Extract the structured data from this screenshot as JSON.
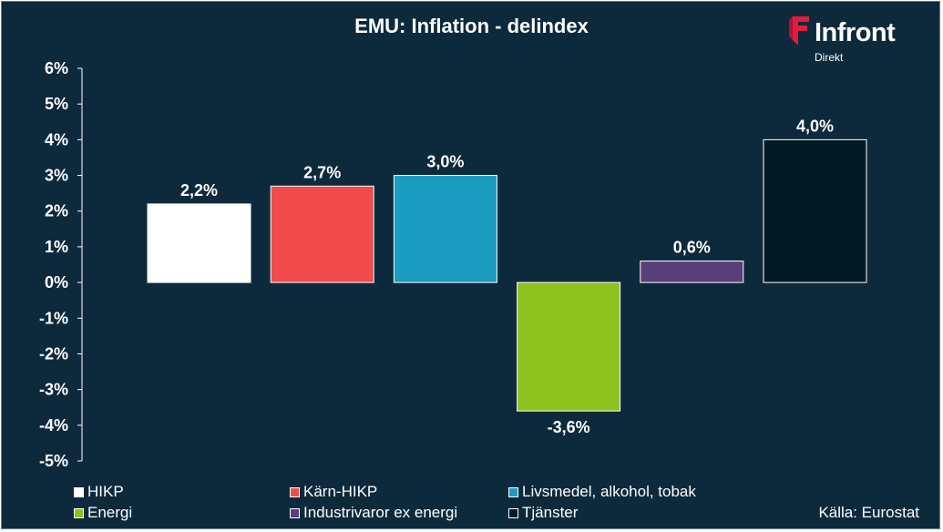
{
  "title": "EMU: Inflation - delindex",
  "logo": {
    "name": "Infront",
    "sub": "Direkt"
  },
  "source": "Källa:  Eurostat",
  "colors": {
    "background": "#0d2a3c",
    "logo_red": "#e31b3c"
  },
  "chart_data": {
    "type": "bar",
    "title": "EMU: Inflation - delindex",
    "xlabel": "",
    "ylabel": "",
    "ylim": [
      -5,
      6
    ],
    "y_ticks": [
      "6%",
      "5%",
      "4%",
      "3%",
      "2%",
      "1%",
      "0%",
      "-1%",
      "-2%",
      "-3%",
      "-4%",
      "-5%"
    ],
    "y_tick_values": [
      6,
      5,
      4,
      3,
      2,
      1,
      0,
      -1,
      -2,
      -3,
      -4,
      -5
    ],
    "categories": [
      "HIKP",
      "Kärn-HIKP",
      "Livsmedel, alkohol, tobak",
      "Energi",
      "Industrivaror ex energi",
      "Tjänster"
    ],
    "values": [
      2.2,
      2.7,
      3.0,
      -3.6,
      0.6,
      4.0
    ],
    "value_labels": [
      "2,2%",
      "2,7%",
      "3,0%",
      "-3,6%",
      "0,6%",
      "4,0%"
    ],
    "colors": [
      "#ffffff",
      "#f24b4b",
      "#1a9cbf",
      "#8cc21e",
      "#5a3f78",
      "#021a26"
    ],
    "grid": false,
    "legend_position": "bottom"
  }
}
